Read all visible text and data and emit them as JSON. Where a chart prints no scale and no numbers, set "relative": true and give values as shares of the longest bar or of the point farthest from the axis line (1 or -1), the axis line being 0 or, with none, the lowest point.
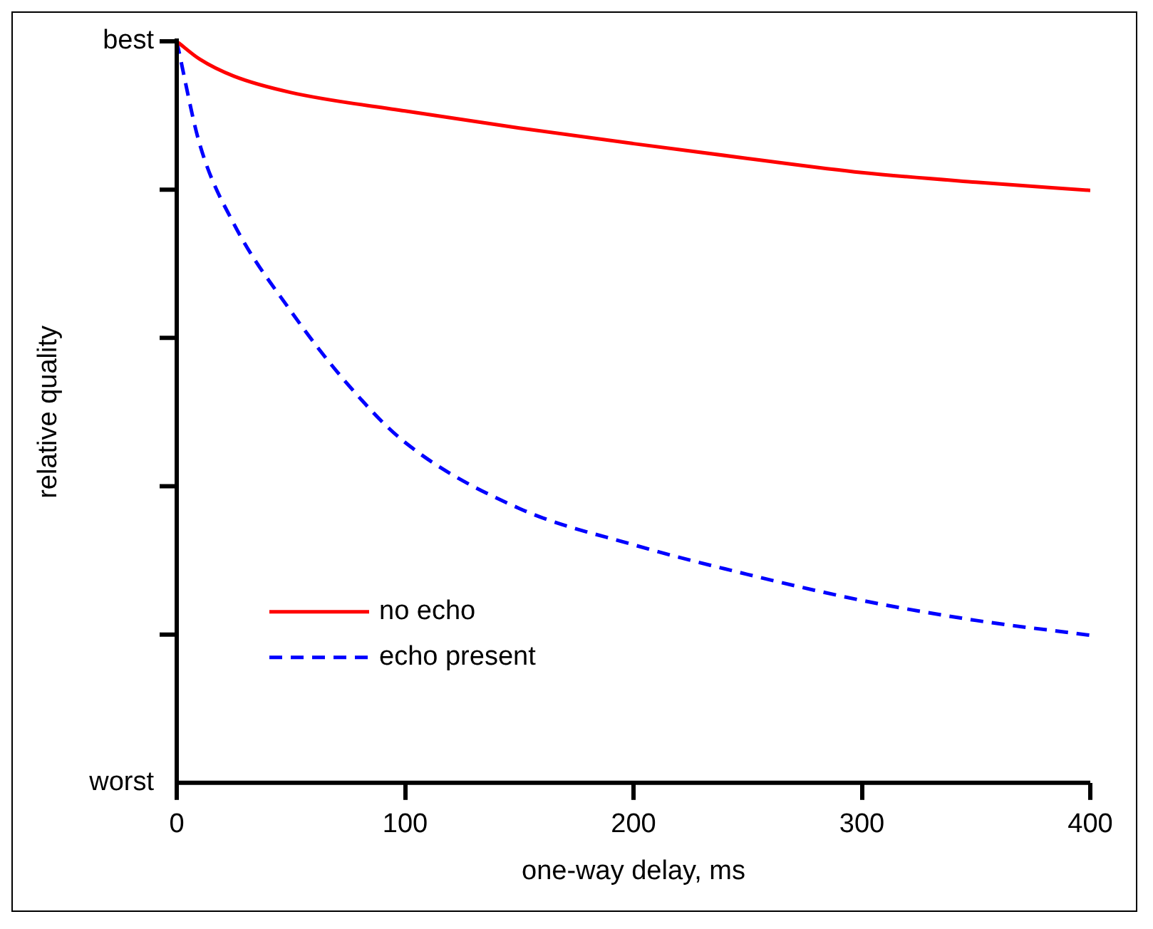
{
  "chart_data": {
    "type": "line",
    "xlabel": "one-way delay, ms",
    "ylabel": "relative quality",
    "xlim": [
      0,
      400
    ],
    "xticks": [
      0,
      100,
      200,
      300,
      400
    ],
    "relative": true,
    "annotations": [
      "best",
      "worst"
    ],
    "grid": false,
    "legend": "bottom left",
    "marker": "none",
    "series": [
      {
        "name": "no echo",
        "color": "#ff0000",
        "line_style": "solid",
        "x": [
          0,
          10,
          25,
          50,
          100,
          150,
          200,
          250,
          300,
          350,
          400
        ],
        "values": [
          1,
          0.976,
          0.953,
          0.931,
          0.906,
          0.883,
          0.862,
          0.842,
          0.823,
          0.81,
          0.799
        ]
      },
      {
        "name": "echo present",
        "color": "#0000ff",
        "line_style": "dashed",
        "x": [
          0,
          10,
          25,
          50,
          75,
          100,
          150,
          200,
          250,
          300,
          350,
          400
        ],
        "values": [
          1,
          0.862,
          0.754,
          0.636,
          0.537,
          0.459,
          0.37,
          0.321,
          0.281,
          0.246,
          0.219,
          0.199
        ]
      }
    ]
  }
}
